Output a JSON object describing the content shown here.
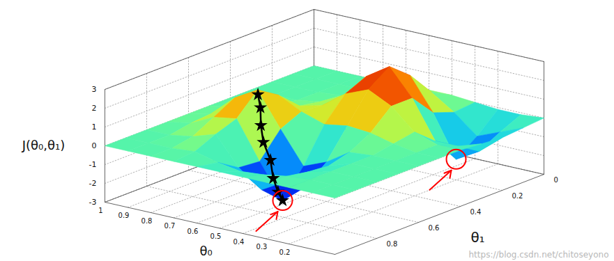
{
  "chart_data": {
    "type": "surface",
    "xlabel": "θ₀",
    "ylabel": "θ₁",
    "zlabel": "J(θ₀,θ₁)",
    "xlim": [
      0,
      1
    ],
    "ylim": [
      0,
      1
    ],
    "zlim": [
      -3,
      3
    ],
    "xticks": [
      0.2,
      0.3,
      0.4,
      0.5,
      0.6,
      0.7,
      0.8,
      0.9,
      1
    ],
    "yticks": [
      0,
      0.2,
      0.4,
      0.6,
      0.8
    ],
    "zticks": [
      -3,
      -2,
      -1,
      0,
      1,
      2,
      3
    ],
    "grid": true,
    "x": [
      0,
      0.1,
      0.2,
      0.3,
      0.4,
      0.5,
      0.6,
      0.7,
      0.8,
      0.9,
      1
    ],
    "y": [
      0,
      0.1,
      0.2,
      0.3,
      0.4,
      0.5,
      0.6,
      0.7,
      0.8,
      0.9,
      1
    ],
    "z": [
      [
        0,
        -0.1,
        -0.2,
        -0.1,
        0,
        0,
        0,
        0,
        0,
        0,
        0
      ],
      [
        -0.1,
        -0.6,
        -1.2,
        -0.5,
        0,
        0,
        0,
        0,
        0,
        0,
        0
      ],
      [
        -0.1,
        -1.1,
        -1.9,
        -0.5,
        0.4,
        0.2,
        0,
        0,
        0,
        0,
        0
      ],
      [
        0,
        -0.1,
        0.3,
        1.5,
        1.5,
        0.5,
        -0.1,
        -0.4,
        -0.3,
        -0.1,
        0
      ],
      [
        0.1,
        0.7,
        2.0,
        2.9,
        2.1,
        0.6,
        -0.9,
        -1.8,
        -1.1,
        -0.3,
        0
      ],
      [
        0.1,
        0.6,
        1.5,
        2.1,
        1.6,
        0.4,
        -1.4,
        -2.8,
        -1.8,
        -0.4,
        0
      ],
      [
        0,
        0.2,
        0.6,
        0.8,
        0.7,
        0.8,
        0.3,
        -1.0,
        -0.9,
        -0.2,
        0
      ],
      [
        0,
        0,
        0.1,
        0.2,
        0.4,
        1.4,
        2.1,
        1.0,
        0.6,
        0.1,
        0
      ],
      [
        0,
        0,
        0,
        0,
        0.2,
        0.8,
        1.4,
        0.8,
        0.2,
        0,
        0
      ],
      [
        0,
        0,
        0,
        0,
        0,
        0.2,
        0.3,
        0.2,
        0,
        0,
        0
      ],
      [
        0,
        0,
        0,
        0,
        0,
        0,
        0,
        0,
        0,
        0,
        0
      ]
    ],
    "path": {
      "x": [
        0.68,
        0.66,
        0.64,
        0.62,
        0.58,
        0.55,
        0.52,
        0.5
      ],
      "y": [
        0.62,
        0.63,
        0.65,
        0.66,
        0.67,
        0.69,
        0.7,
        0.7
      ],
      "z": [
        2.0,
        1.4,
        0.6,
        -0.2,
        -1.0,
        -1.8,
        -2.4,
        -2.8
      ],
      "color": "black",
      "marker": "star"
    },
    "highlights": {
      "x": [
        0.5,
        0.2
      ],
      "y": [
        0.7,
        0.2
      ],
      "z": [
        -2.8,
        -1.9
      ],
      "color": "red"
    },
    "watermark": "https://blog.csdn.net/chitoseyono"
  }
}
